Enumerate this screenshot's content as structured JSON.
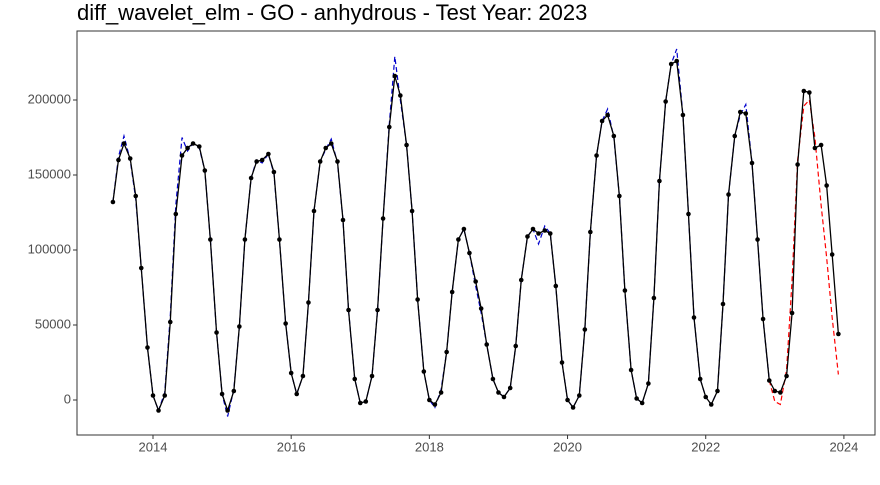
{
  "chart_data": {
    "type": "line",
    "title": "diff_wavelet_elm - GO - anhydrous - Test Year: 2023",
    "x": [
      2013.42,
      2013.5,
      2013.58,
      2013.67,
      2013.75,
      2013.83,
      2013.92,
      2014,
      2014.08,
      2014.17,
      2014.25,
      2014.33,
      2014.42,
      2014.5,
      2014.58,
      2014.67,
      2014.75,
      2014.83,
      2014.92,
      2015,
      2015.08,
      2015.17,
      2015.25,
      2015.33,
      2015.42,
      2015.5,
      2015.58,
      2015.67,
      2015.75,
      2015.83,
      2015.92,
      2016,
      2016.08,
      2016.17,
      2016.25,
      2016.33,
      2016.42,
      2016.5,
      2016.58,
      2016.67,
      2016.75,
      2016.83,
      2016.92,
      2017,
      2017.08,
      2017.17,
      2017.25,
      2017.33,
      2017.42,
      2017.5,
      2017.58,
      2017.67,
      2017.75,
      2017.83,
      2017.92,
      2018,
      2018.08,
      2018.17,
      2018.25,
      2018.33,
      2018.42,
      2018.5,
      2018.58,
      2018.67,
      2018.75,
      2018.83,
      2018.92,
      2019,
      2019.08,
      2019.17,
      2019.25,
      2019.33,
      2019.42,
      2019.5,
      2019.58,
      2019.67,
      2019.75,
      2019.83,
      2019.92,
      2020,
      2020.08,
      2020.17,
      2020.25,
      2020.33,
      2020.42,
      2020.5,
      2020.58,
      2020.67,
      2020.75,
      2020.83,
      2020.92,
      2021,
      2021.08,
      2021.17,
      2021.25,
      2021.33,
      2021.42,
      2021.5,
      2021.58,
      2021.67,
      2021.75,
      2021.83,
      2021.92,
      2022,
      2022.08,
      2022.17,
      2022.25,
      2022.33,
      2022.42,
      2022.5,
      2022.58,
      2022.67,
      2022.75,
      2022.83,
      2022.92,
      2023,
      2023.08,
      2023.17,
      2023.25,
      2023.33,
      2023.42,
      2023.5,
      2023.58,
      2023.67,
      2023.75,
      2023.83,
      2023.92
    ],
    "series": [
      {
        "name": "fitted",
        "color": "#0000cc",
        "dash": true,
        "points": false,
        "values": [
          132000,
          162000,
          176000,
          160000,
          134000,
          88000,
          35000,
          3000,
          -7000,
          5000,
          56000,
          130000,
          175000,
          166000,
          171000,
          168000,
          153000,
          107000,
          45000,
          4000,
          -11000,
          7000,
          49000,
          107000,
          148000,
          160000,
          158000,
          164000,
          151000,
          107000,
          51000,
          18000,
          4000,
          16000,
          65000,
          126000,
          159000,
          167000,
          174000,
          158000,
          120000,
          60000,
          14000,
          -2000,
          -1000,
          16000,
          60000,
          121000,
          184000,
          229000,
          200000,
          170000,
          126000,
          67000,
          19000,
          0,
          -5000,
          7000,
          32000,
          72000,
          107000,
          114000,
          98000,
          76000,
          58000,
          37000,
          14000,
          5000,
          2000,
          8000,
          36000,
          80000,
          109000,
          114000,
          104000,
          116000,
          111000,
          76000,
          25000,
          0,
          -5000,
          3000,
          47000,
          112000,
          163000,
          186000,
          194000,
          175000,
          136000,
          73000,
          20000,
          1000,
          -2000,
          11000,
          68000,
          146000,
          199000,
          224000,
          234000,
          190000,
          124000,
          55000,
          14000,
          2000,
          -3000,
          6000,
          64000,
          137000,
          176000,
          190000,
          197000,
          158000,
          107000,
          54000,
          13000,
          null,
          null,
          null,
          null,
          null,
          null,
          null,
          null,
          null,
          null,
          null,
          null
        ]
      },
      {
        "name": "forecast",
        "color": "#ff0000",
        "dash": true,
        "points": false,
        "values": [
          null,
          null,
          null,
          null,
          null,
          null,
          null,
          null,
          null,
          null,
          null,
          null,
          null,
          null,
          null,
          null,
          null,
          null,
          null,
          null,
          null,
          null,
          null,
          null,
          null,
          null,
          null,
          null,
          null,
          null,
          null,
          null,
          null,
          null,
          null,
          null,
          null,
          null,
          null,
          null,
          null,
          null,
          null,
          null,
          null,
          null,
          null,
          null,
          null,
          null,
          null,
          null,
          null,
          null,
          null,
          null,
          null,
          null,
          null,
          null,
          null,
          null,
          null,
          null,
          null,
          null,
          null,
          null,
          null,
          null,
          null,
          null,
          null,
          null,
          null,
          null,
          null,
          null,
          null,
          null,
          null,
          null,
          null,
          null,
          null,
          null,
          null,
          null,
          null,
          null,
          null,
          null,
          null,
          null,
          null,
          null,
          null,
          null,
          null,
          null,
          null,
          null,
          null,
          null,
          null,
          null,
          null,
          null,
          null,
          null,
          null,
          null,
          null,
          null,
          13000,
          -1000,
          -3000,
          20000,
          80000,
          160000,
          196000,
          200000,
          175000,
          130000,
          95000,
          55000,
          17000
        ]
      },
      {
        "name": "actual",
        "color": "#000000",
        "dash": false,
        "points": true,
        "values": [
          132000,
          160000,
          171000,
          161000,
          136000,
          88000,
          35000,
          3000,
          -7000,
          3000,
          52000,
          124000,
          163000,
          168000,
          171000,
          169000,
          153000,
          107000,
          45000,
          4000,
          -7000,
          6000,
          49000,
          107000,
          148000,
          159000,
          160000,
          164000,
          152000,
          107000,
          51000,
          18000,
          4000,
          16000,
          65000,
          126000,
          159000,
          168000,
          171000,
          159000,
          120000,
          60000,
          14000,
          -2000,
          -1000,
          16000,
          60000,
          121000,
          182000,
          216000,
          203000,
          170000,
          126000,
          67000,
          19000,
          0,
          -3000,
          5000,
          32000,
          72000,
          107000,
          114000,
          98000,
          79000,
          61000,
          37000,
          14000,
          5000,
          2000,
          8000,
          36000,
          80000,
          109000,
          114000,
          111000,
          113000,
          111000,
          76000,
          25000,
          0,
          -5000,
          3000,
          47000,
          112000,
          163000,
          186000,
          190000,
          176000,
          136000,
          73000,
          20000,
          1000,
          -2000,
          11000,
          68000,
          146000,
          199000,
          224000,
          226000,
          190000,
          124000,
          55000,
          14000,
          2000,
          -3000,
          6000,
          64000,
          137000,
          176000,
          192000,
          191000,
          158000,
          107000,
          54000,
          13000,
          6000,
          5000,
          16000,
          58000,
          157000,
          206000,
          205000,
          168000,
          170000,
          143000,
          97000,
          44000
        ]
      }
    ],
    "xlim": [
      2012.9,
      2024.45
    ],
    "ylim": [
      -23333,
      246000
    ],
    "xticks": [
      2014,
      2016,
      2018,
      2020,
      2022,
      2024
    ],
    "yticks": [
      0,
      50000,
      100000,
      150000,
      200000
    ]
  }
}
